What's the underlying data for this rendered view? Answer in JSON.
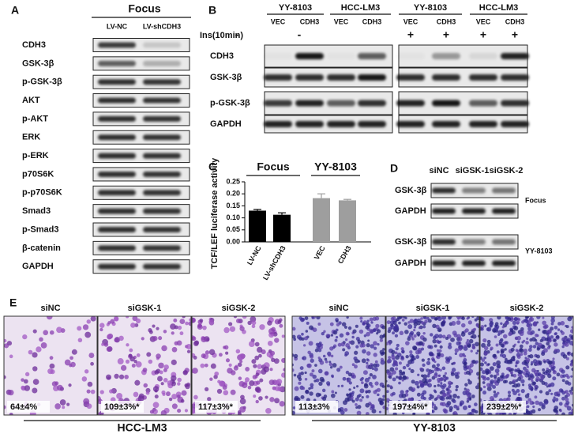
{
  "panel_a": {
    "label": "A",
    "group": "Focus",
    "lanes": [
      "LV-NC",
      "LV-shCDH3"
    ],
    "rows": [
      "CDH3",
      "GSK-3β",
      "p-GSK-3β",
      "AKT",
      "p-AKT",
      "ERK",
      "p-ERK",
      "p70S6K",
      "p-p70S6K",
      "Smad3",
      "p-Smad3",
      "β-catenin",
      "GAPDH"
    ]
  },
  "panel_b": {
    "label": "B",
    "groups": [
      "YY-8103",
      "HCC-LM3",
      "YY-8103",
      "HCC-LM3"
    ],
    "lanes": [
      "VEC",
      "CDH3",
      "VEC",
      "CDH3",
      "VEC",
      "CDH3",
      "VEC",
      "CDH3"
    ],
    "treatment": "Ins(10min)",
    "treatment_signs": [
      null,
      "-",
      null,
      "-",
      "+",
      "+",
      "+",
      "+"
    ],
    "rows": [
      "CDH3",
      "GSK-3β",
      "p-GSK-3β",
      "GAPDH"
    ]
  },
  "chart_data": {
    "type": "bar",
    "panel_label": "C",
    "y_label": "TCF/LEF luciferase activity",
    "group_labels": [
      "Focus",
      "YY-8103"
    ],
    "categories": [
      "LV-NC",
      "LV-shCDH3",
      "VEC",
      "CDH3"
    ],
    "values": [
      0.13,
      0.113,
      0.182,
      0.173
    ],
    "errors": [
      0.005,
      0.008,
      0.018,
      0.004
    ],
    "colors": [
      "#000000",
      "#000000",
      "#9e9e9e",
      "#9e9e9e"
    ],
    "ylim": [
      0,
      0.25
    ],
    "yticks": [
      {
        "value": 0,
        "label": "0.00"
      },
      {
        "value": 0.05,
        "label": "0.05"
      },
      {
        "value": 0.1,
        "label": "0.10"
      },
      {
        "value": 0.15,
        "label": "0.15"
      },
      {
        "value": 0.2,
        "label": "0.20"
      },
      {
        "value": 0.25,
        "label": "0.25"
      }
    ]
  },
  "panel_d": {
    "label": "D",
    "lanes": [
      "siNC",
      "siGSK-1",
      "siGSK-2"
    ],
    "groups": [
      {
        "name": "Focus",
        "rows": [
          "GSK-3β",
          "GAPDH"
        ]
      },
      {
        "name": "YY-8103",
        "rows": [
          "GSK-3β",
          "GAPDH"
        ]
      }
    ]
  },
  "panel_e": {
    "label": "E",
    "groups": [
      {
        "name": "HCC-LM3",
        "images": [
          {
            "title": "siNC",
            "value": "64±4%"
          },
          {
            "title": "siGSK-1",
            "value": "109±3%*"
          },
          {
            "title": "siGSK-2",
            "value": "117±3%*"
          }
        ]
      },
      {
        "name": "YY-8103",
        "images": [
          {
            "title": "siNC",
            "value": "113±3%"
          },
          {
            "title": "siGSK-1",
            "value": "197±4%*"
          },
          {
            "title": "siGSK-2",
            "value": "239±2%*"
          }
        ]
      }
    ]
  }
}
